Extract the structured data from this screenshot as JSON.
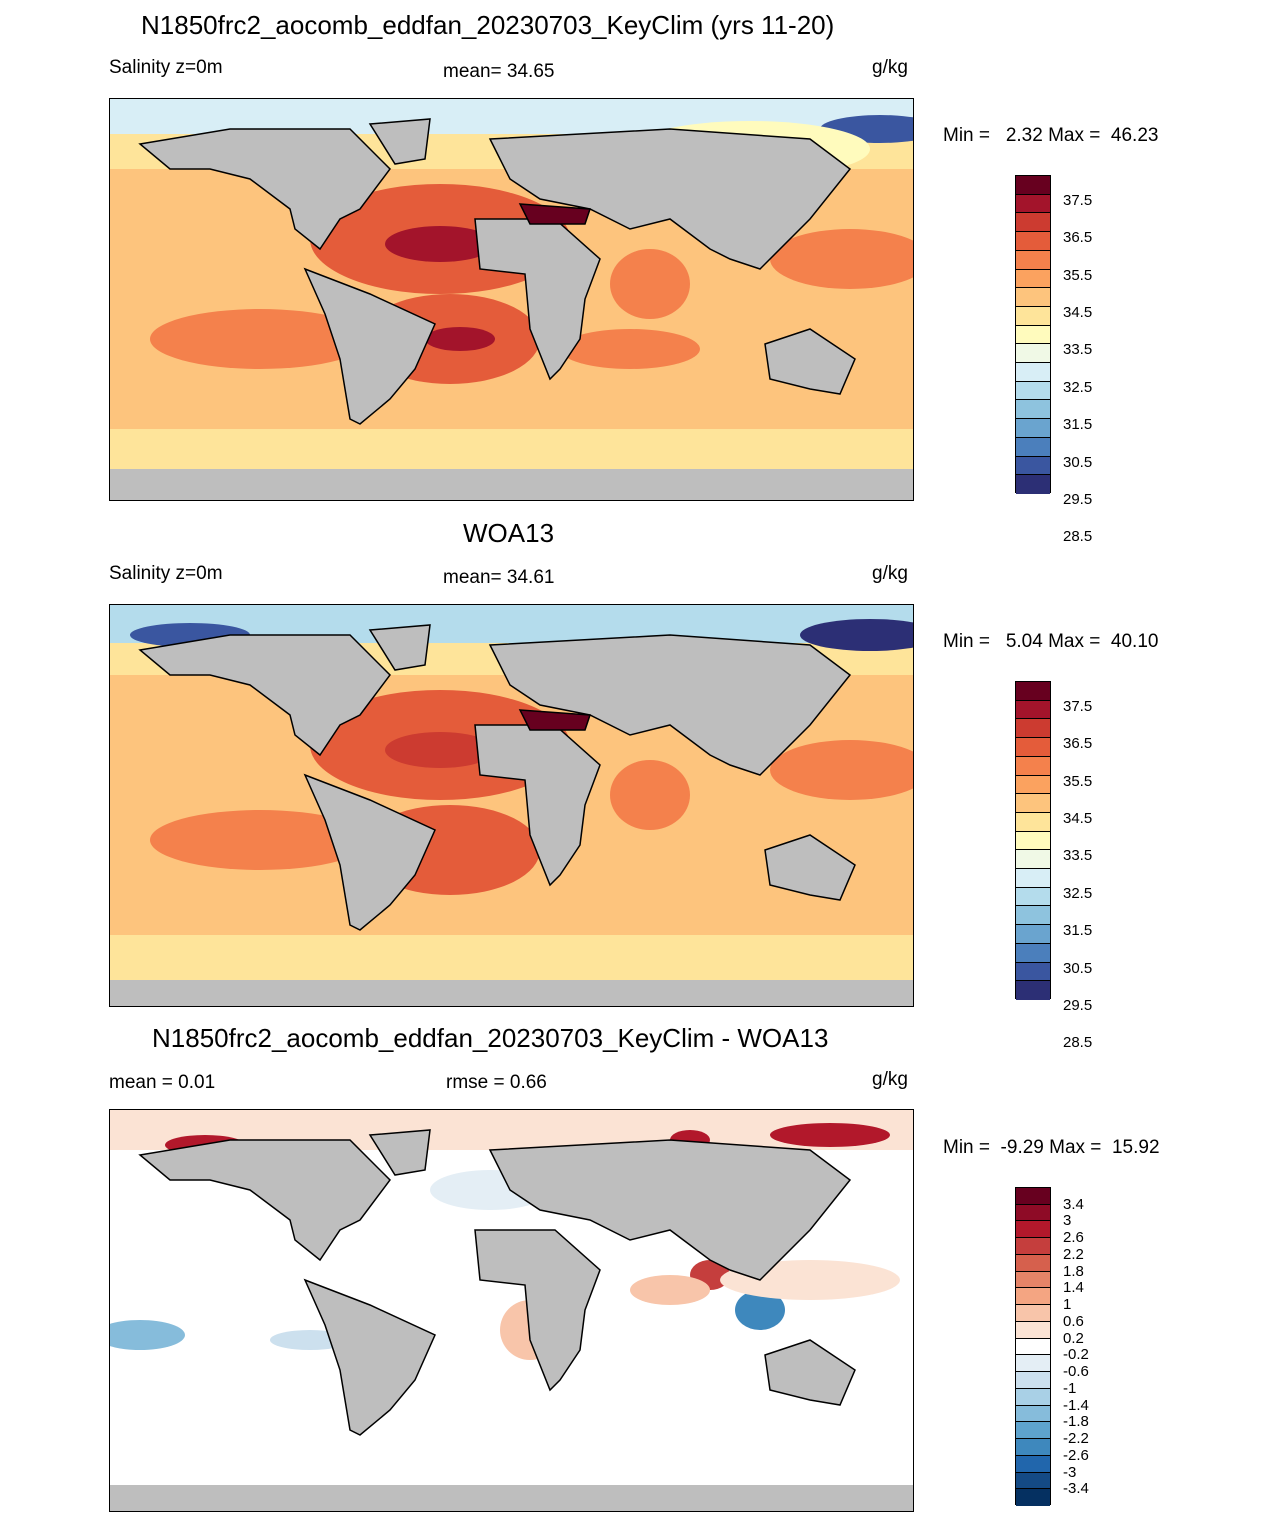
{
  "panels": [
    {
      "title": "N1850frc2_aocomb_eddfan_20230703_KeyClim (yrs 11-20)",
      "left_label": "Salinity z=0m",
      "center_label": "mean=  34.65",
      "units": "g/kg",
      "minmax": "Min =   2.32 Max =  46.23",
      "colorbar_ticks": [
        "37.5",
        "36.5",
        "35.5",
        "34.5",
        "33.5",
        "32.5",
        "31.5",
        "30.5",
        "29.5",
        "28.5"
      ]
    },
    {
      "title": "WOA13",
      "left_label": "Salinity z=0m",
      "center_label": "mean=  34.61",
      "units": "g/kg",
      "minmax": "Min =   5.04 Max =  40.10",
      "colorbar_ticks": [
        "37.5",
        "36.5",
        "35.5",
        "34.5",
        "33.5",
        "32.5",
        "31.5",
        "30.5",
        "29.5",
        "28.5"
      ]
    },
    {
      "title": "N1850frc2_aocomb_eddfan_20230703_KeyClim - WOA13",
      "left_label": "mean =    0.01",
      "center_label": "rmse =    0.66",
      "units": "g/kg",
      "minmax": "Min =  -9.29 Max =  15.92",
      "colorbar_ticks": [
        "3.4",
        "3",
        "2.6",
        "2.2",
        "1.8",
        "1.4",
        "1",
        "0.6",
        "0.2",
        "-0.2",
        "-0.6",
        "-1",
        "-1.4",
        "-1.8",
        "-2.2",
        "-2.6",
        "-3",
        "-3.4"
      ]
    }
  ],
  "colors": {
    "land": "#bebebe",
    "sal_scale": [
      "#67001f",
      "#a3142b",
      "#cc3b30",
      "#e45c3a",
      "#f4814c",
      "#fba25f",
      "#fdc47d",
      "#fee49a",
      "#fffbbd",
      "#f0f9e6",
      "#d8eef6",
      "#b4dcec",
      "#8ec3de",
      "#6aa4cf",
      "#4b7fbc",
      "#3a56a0",
      "#2c2f75"
    ],
    "diff_scale": [
      "#67001f",
      "#8e0b26",
      "#b2182b",
      "#c53e3d",
      "#d6604d",
      "#e58468",
      "#f4a582",
      "#f8c5aa",
      "#fbe3d4",
      "#ffffff",
      "#e4eef5",
      "#cce0ee",
      "#a9d0e6",
      "#86bcdb",
      "#5ea3cd",
      "#3e88bd",
      "#2166ac",
      "#144a85",
      "#053061"
    ]
  },
  "chart_data": [
    {
      "type": "heatmap",
      "title": "N1850frc2_aocomb_eddfan_20230703_KeyClim (yrs 11-20)",
      "variable": "Salinity z=0m",
      "units": "g/kg",
      "mean": 34.65,
      "min": 2.32,
      "max": 46.23,
      "levels": [
        28.5,
        29,
        29.5,
        30,
        30.5,
        31,
        31.5,
        32,
        32.5,
        33,
        33.5,
        34,
        34.5,
        35,
        35.5,
        36,
        36.5,
        37,
        37.5
      ]
    },
    {
      "type": "heatmap",
      "title": "WOA13",
      "variable": "Salinity z=0m",
      "units": "g/kg",
      "mean": 34.61,
      "min": 5.04,
      "max": 40.1,
      "levels": [
        28.5,
        29,
        29.5,
        30,
        30.5,
        31,
        31.5,
        32,
        32.5,
        33,
        33.5,
        34,
        34.5,
        35,
        35.5,
        36,
        36.5,
        37,
        37.5
      ]
    },
    {
      "type": "heatmap",
      "title": "N1850frc2_aocomb_eddfan_20230703_KeyClim - WOA13",
      "units": "g/kg",
      "mean": 0.01,
      "rmse": 0.66,
      "min": -9.29,
      "max": 15.92,
      "levels": [
        -3.4,
        -3,
        -2.6,
        -2.2,
        -1.8,
        -1.4,
        -1,
        -0.6,
        -0.2,
        0.2,
        0.6,
        1,
        1.4,
        1.8,
        2.2,
        2.6,
        3,
        3.4
      ]
    }
  ]
}
